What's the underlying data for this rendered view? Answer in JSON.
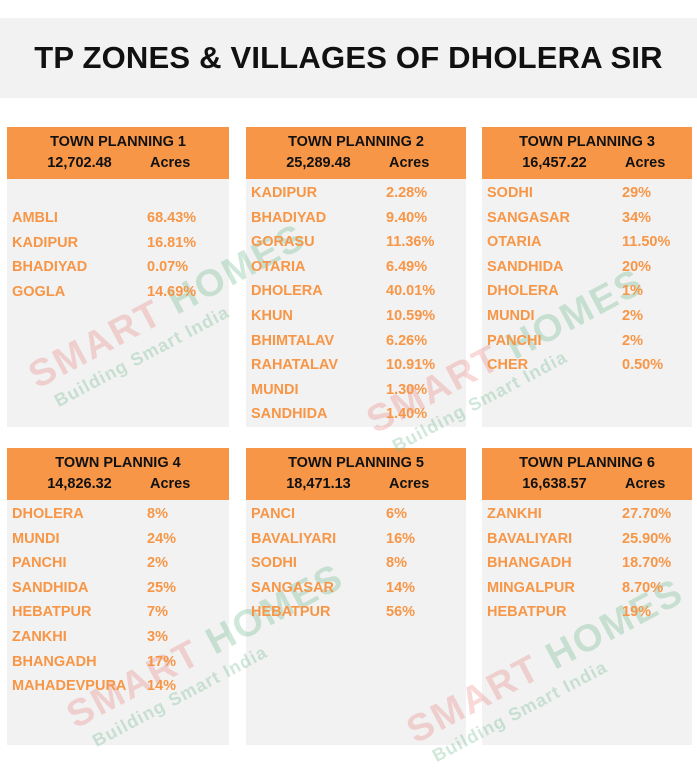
{
  "title": "TP ZONES & VILLAGES OF DHOLERA SIR",
  "watermark": {
    "main": "SMART",
    "main2": "HOMES",
    "tagline": "Building Smart India"
  },
  "colors": {
    "header": "#f79646",
    "text": "#f79646",
    "panel": "#f2f2f2"
  },
  "panels": [
    {
      "name": "TOWN PLANNING 1",
      "area": "12,702.48",
      "unit": "Acres",
      "rows": [
        {
          "village": "AMBLI",
          "pct": "68.43%"
        },
        {
          "village": "KADIPUR",
          "pct": "16.81%"
        },
        {
          "village": "BHADIYAD",
          "pct": "0.07%"
        },
        {
          "village": "GOGLA",
          "pct": "14.69%"
        }
      ]
    },
    {
      "name": "TOWN PLANNING 2",
      "area": "25,289.48",
      "unit": "Acres",
      "rows": [
        {
          "village": "KADIPUR",
          "pct": "2.28%"
        },
        {
          "village": "BHADIYAD",
          "pct": "9.40%"
        },
        {
          "village": "GORASU",
          "pct": "11.36%"
        },
        {
          "village": "OTARIA",
          "pct": "6.49%"
        },
        {
          "village": "DHOLERA",
          "pct": "40.01%"
        },
        {
          "village": "KHUN",
          "pct": "10.59%"
        },
        {
          "village": "BHIMTALAV",
          "pct": "6.26%"
        },
        {
          "village": "RAHATALAV",
          "pct": "10.91%"
        },
        {
          "village": "MUNDI",
          "pct": "1.30%"
        },
        {
          "village": "SANDHIDA",
          "pct": "1.40%"
        }
      ]
    },
    {
      "name": "TOWN PLANNING 3",
      "area": "16,457.22",
      "unit": "Acres",
      "rows": [
        {
          "village": "SODHI",
          "pct": "29%"
        },
        {
          "village": "SANGASAR",
          "pct": "34%"
        },
        {
          "village": "OTARIA",
          "pct": "11.50%"
        },
        {
          "village": "SANDHIDA",
          "pct": "20%"
        },
        {
          "village": "DHOLERA",
          "pct": "1%"
        },
        {
          "village": "MUNDI",
          "pct": "2%"
        },
        {
          "village": "PANCHI",
          "pct": "2%"
        },
        {
          "village": "CHER",
          "pct": "0.50%"
        }
      ]
    },
    {
      "name": "TOWN PLANNIG 4",
      "area": "14,826.32",
      "unit": "Acres",
      "rows": [
        {
          "village": "DHOLERA",
          "pct": "8%"
        },
        {
          "village": "MUNDI",
          "pct": "24%"
        },
        {
          "village": "PANCHI",
          "pct": "2%"
        },
        {
          "village": "SANDHIDA",
          "pct": "25%"
        },
        {
          "village": "HEBATPUR",
          "pct": "7%"
        },
        {
          "village": "ZANKHI",
          "pct": "3%"
        },
        {
          "village": "BHANGADH",
          "pct": "17%"
        },
        {
          "village": "MAHADEVPURA",
          "pct": "14%"
        }
      ]
    },
    {
      "name": "TOWN PLANNING 5",
      "area": "18,471.13",
      "unit": "Acres",
      "rows": [
        {
          "village": "PANCI",
          "pct": "6%"
        },
        {
          "village": "BAVALIYARI",
          "pct": "16%"
        },
        {
          "village": "SODHI",
          "pct": "8%"
        },
        {
          "village": "SANGASAR",
          "pct": "14%"
        },
        {
          "village": "HEBATPUR",
          "pct": "56%"
        }
      ]
    },
    {
      "name": "TOWN PLANNING 6",
      "area": "16,638.57",
      "unit": "Acres",
      "rows": [
        {
          "village": "ZANKHI",
          "pct": "27.70%"
        },
        {
          "village": "BAVALIYARI",
          "pct": "25.90%"
        },
        {
          "village": "BHANGADH",
          "pct": "18.70%"
        },
        {
          "village": "MINGALPUR",
          "pct": "8.70%"
        },
        {
          "village": "HEBATPUR",
          "pct": "19%"
        }
      ]
    }
  ]
}
